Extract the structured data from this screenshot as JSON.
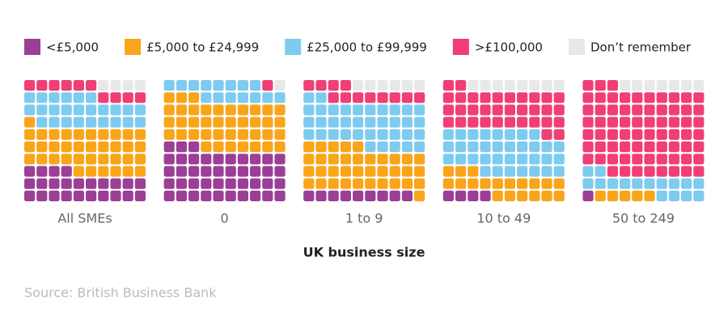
{
  "chart_data": {
    "type": "waffle",
    "categories": [
      "All SMEs",
      "0",
      "1 to 9",
      "10 to 49",
      "50 to 249"
    ],
    "series": [
      {
        "name": "<£5,000",
        "color": "#9b3f96",
        "values": [
          24,
          43,
          9,
          4,
          1
        ]
      },
      {
        "name": "£5,000 to £24,999",
        "color": "#f9a51a",
        "values": [
          37,
          40,
          36,
          19,
          5
        ]
      },
      {
        "name": "£25,000 to £99,999",
        "color": "#7ecbef",
        "values": [
          25,
          15,
          37,
          35,
          16
        ]
      },
      {
        "name": ">£100,000",
        "color": "#ef3f76",
        "values": [
          10,
          1,
          12,
          34,
          71
        ]
      },
      {
        "name": "Don’t remember",
        "color": "#e8e8e8",
        "values": [
          4,
          1,
          6,
          8,
          7
        ]
      }
    ],
    "x_label": "UK business size",
    "source": "Source: British Business Bank"
  }
}
